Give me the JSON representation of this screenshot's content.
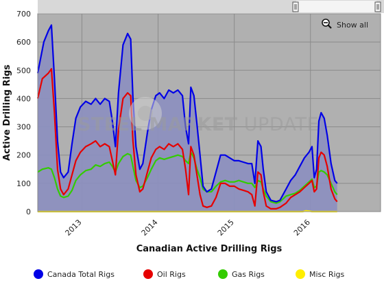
{
  "toolbar": {
    "show_all_label": "Show all"
  },
  "watermark": {
    "bold": "STEEL MARKET",
    "light": " UPDATE"
  },
  "colors": {
    "plot_bg": "#b0b0b0",
    "canada": "#0000e6",
    "canada_fill": "#8c8fbf",
    "oil": "#e60000",
    "gas": "#33cc00",
    "misc": "#ffee00",
    "scroll_track": "#e8e8e8"
  },
  "chart_data": {
    "type": "area",
    "title": "",
    "xlabel": "Canadian Active Drilling Rigs",
    "ylabel": "Active Drilling Rigs",
    "x_range": [
      2012.42,
      2016.92
    ],
    "ylim": [
      0,
      700
    ],
    "y_ticks": [
      0,
      100,
      200,
      300,
      400,
      500,
      600,
      700
    ],
    "x_ticks": [
      {
        "label": "2013",
        "value": 2013.0
      },
      {
        "label": "2014",
        "value": 2014.0
      },
      {
        "label": "2015",
        "value": 2015.0
      },
      {
        "label": "2016",
        "value": 2016.0
      }
    ],
    "grid": true,
    "legend_position": "bottom",
    "series": [
      {
        "name": "Canada Total Rigs",
        "color_key": "canada",
        "fill_key": "canada_fill",
        "points": [
          [
            2012.42,
            490
          ],
          [
            2012.5,
            600
          ],
          [
            2012.56,
            640
          ],
          [
            2012.6,
            660
          ],
          [
            2012.64,
            470
          ],
          [
            2012.68,
            250
          ],
          [
            2012.72,
            140
          ],
          [
            2012.76,
            120
          ],
          [
            2012.82,
            140
          ],
          [
            2012.87,
            240
          ],
          [
            2012.92,
            330
          ],
          [
            2012.98,
            370
          ],
          [
            2013.05,
            390
          ],
          [
            2013.12,
            380
          ],
          [
            2013.18,
            400
          ],
          [
            2013.24,
            380
          ],
          [
            2013.3,
            400
          ],
          [
            2013.36,
            390
          ],
          [
            2013.4,
            320
          ],
          [
            2013.44,
            230
          ],
          [
            2013.48,
            420
          ],
          [
            2013.54,
            590
          ],
          [
            2013.6,
            630
          ],
          [
            2013.64,
            610
          ],
          [
            2013.67,
            400
          ],
          [
            2013.71,
            230
          ],
          [
            2013.76,
            150
          ],
          [
            2013.8,
            170
          ],
          [
            2013.86,
            280
          ],
          [
            2013.91,
            360
          ],
          [
            2013.97,
            410
          ],
          [
            2014.02,
            420
          ],
          [
            2014.08,
            400
          ],
          [
            2014.14,
            430
          ],
          [
            2014.2,
            420
          ],
          [
            2014.26,
            430
          ],
          [
            2014.32,
            410
          ],
          [
            2014.36,
            300
          ],
          [
            2014.4,
            240
          ],
          [
            2014.43,
            440
          ],
          [
            2014.47,
            410
          ],
          [
            2014.51,
            310
          ],
          [
            2014.55,
            200
          ],
          [
            2014.59,
            90
          ],
          [
            2014.64,
            70
          ],
          [
            2014.7,
            80
          ],
          [
            2014.76,
            140
          ],
          [
            2014.82,
            200
          ],
          [
            2014.88,
            200
          ],
          [
            2014.94,
            190
          ],
          [
            2015.0,
            180
          ],
          [
            2015.06,
            180
          ],
          [
            2015.12,
            175
          ],
          [
            2015.18,
            170
          ],
          [
            2015.23,
            170
          ],
          [
            2015.27,
            100
          ],
          [
            2015.31,
            250
          ],
          [
            2015.35,
            230
          ],
          [
            2015.38,
            150
          ],
          [
            2015.42,
            70
          ],
          [
            2015.48,
            40
          ],
          [
            2015.55,
            35
          ],
          [
            2015.6,
            40
          ],
          [
            2015.68,
            80
          ],
          [
            2015.74,
            110
          ],
          [
            2015.8,
            130
          ],
          [
            2015.86,
            160
          ],
          [
            2015.92,
            190
          ],
          [
            2015.98,
            210
          ],
          [
            2016.02,
            230
          ],
          [
            2016.05,
            120
          ],
          [
            2016.08,
            150
          ],
          [
            2016.11,
            320
          ],
          [
            2016.14,
            350
          ],
          [
            2016.18,
            330
          ],
          [
            2016.22,
            270
          ],
          [
            2016.27,
            170
          ],
          [
            2016.32,
            110
          ],
          [
            2016.35,
            100
          ]
        ]
      },
      {
        "name": "Oil Rigs",
        "color_key": "oil",
        "points": [
          [
            2012.42,
            400
          ],
          [
            2012.48,
            470
          ],
          [
            2012.56,
            490
          ],
          [
            2012.6,
            505
          ],
          [
            2012.64,
            350
          ],
          [
            2012.68,
            150
          ],
          [
            2012.72,
            80
          ],
          [
            2012.76,
            60
          ],
          [
            2012.82,
            80
          ],
          [
            2012.87,
            130
          ],
          [
            2012.92,
            180
          ],
          [
            2012.98,
            210
          ],
          [
            2013.05,
            230
          ],
          [
            2013.12,
            240
          ],
          [
            2013.18,
            250
          ],
          [
            2013.24,
            230
          ],
          [
            2013.3,
            240
          ],
          [
            2013.36,
            230
          ],
          [
            2013.4,
            180
          ],
          [
            2013.44,
            130
          ],
          [
            2013.48,
            290
          ],
          [
            2013.54,
            400
          ],
          [
            2013.6,
            420
          ],
          [
            2013.64,
            410
          ],
          [
            2013.67,
            250
          ],
          [
            2013.71,
            130
          ],
          [
            2013.76,
            70
          ],
          [
            2013.8,
            80
          ],
          [
            2013.86,
            140
          ],
          [
            2013.91,
            190
          ],
          [
            2013.97,
            220
          ],
          [
            2014.02,
            230
          ],
          [
            2014.08,
            220
          ],
          [
            2014.14,
            240
          ],
          [
            2014.2,
            230
          ],
          [
            2014.26,
            240
          ],
          [
            2014.32,
            220
          ],
          [
            2014.36,
            150
          ],
          [
            2014.4,
            60
          ],
          [
            2014.43,
            230
          ],
          [
            2014.47,
            200
          ],
          [
            2014.51,
            130
          ],
          [
            2014.55,
            60
          ],
          [
            2014.59,
            20
          ],
          [
            2014.64,
            15
          ],
          [
            2014.7,
            20
          ],
          [
            2014.76,
            50
          ],
          [
            2014.82,
            100
          ],
          [
            2014.88,
            100
          ],
          [
            2014.94,
            90
          ],
          [
            2015.0,
            90
          ],
          [
            2015.06,
            80
          ],
          [
            2015.12,
            75
          ],
          [
            2015.18,
            70
          ],
          [
            2015.23,
            60
          ],
          [
            2015.27,
            20
          ],
          [
            2015.31,
            140
          ],
          [
            2015.35,
            130
          ],
          [
            2015.38,
            70
          ],
          [
            2015.42,
            20
          ],
          [
            2015.48,
            10
          ],
          [
            2015.55,
            10
          ],
          [
            2015.6,
            15
          ],
          [
            2015.68,
            30
          ],
          [
            2015.74,
            50
          ],
          [
            2015.8,
            60
          ],
          [
            2015.86,
            70
          ],
          [
            2015.92,
            85
          ],
          [
            2015.98,
            100
          ],
          [
            2016.02,
            110
          ],
          [
            2016.05,
            70
          ],
          [
            2016.08,
            80
          ],
          [
            2016.11,
            190
          ],
          [
            2016.14,
            210
          ],
          [
            2016.18,
            200
          ],
          [
            2016.22,
            160
          ],
          [
            2016.27,
            80
          ],
          [
            2016.32,
            45
          ],
          [
            2016.35,
            35
          ]
        ]
      },
      {
        "name": "Gas Rigs",
        "color_key": "gas",
        "points": [
          [
            2012.42,
            140
          ],
          [
            2012.48,
            150
          ],
          [
            2012.56,
            155
          ],
          [
            2012.6,
            150
          ],
          [
            2012.64,
            120
          ],
          [
            2012.68,
            80
          ],
          [
            2012.72,
            55
          ],
          [
            2012.76,
            50
          ],
          [
            2012.82,
            55
          ],
          [
            2012.87,
            75
          ],
          [
            2012.92,
            110
          ],
          [
            2012.98,
            130
          ],
          [
            2013.05,
            145
          ],
          [
            2013.12,
            150
          ],
          [
            2013.18,
            165
          ],
          [
            2013.24,
            160
          ],
          [
            2013.3,
            170
          ],
          [
            2013.36,
            175
          ],
          [
            2013.4,
            160
          ],
          [
            2013.44,
            140
          ],
          [
            2013.48,
            170
          ],
          [
            2013.54,
            195
          ],
          [
            2013.6,
            205
          ],
          [
            2013.64,
            200
          ],
          [
            2013.67,
            160
          ],
          [
            2013.71,
            110
          ],
          [
            2013.76,
            85
          ],
          [
            2013.8,
            90
          ],
          [
            2013.86,
            120
          ],
          [
            2013.91,
            150
          ],
          [
            2013.97,
            180
          ],
          [
            2014.02,
            190
          ],
          [
            2014.08,
            185
          ],
          [
            2014.14,
            190
          ],
          [
            2014.2,
            195
          ],
          [
            2014.26,
            200
          ],
          [
            2014.32,
            195
          ],
          [
            2014.36,
            180
          ],
          [
            2014.4,
            170
          ],
          [
            2014.43,
            210
          ],
          [
            2014.47,
            190
          ],
          [
            2014.51,
            150
          ],
          [
            2014.55,
            120
          ],
          [
            2014.59,
            80
          ],
          [
            2014.64,
            70
          ],
          [
            2014.7,
            70
          ],
          [
            2014.76,
            90
          ],
          [
            2014.82,
            105
          ],
          [
            2014.88,
            110
          ],
          [
            2014.94,
            105
          ],
          [
            2015.0,
            105
          ],
          [
            2015.06,
            110
          ],
          [
            2015.12,
            105
          ],
          [
            2015.18,
            100
          ],
          [
            2015.23,
            100
          ],
          [
            2015.27,
            85
          ],
          [
            2015.31,
            110
          ],
          [
            2015.35,
            105
          ],
          [
            2015.38,
            80
          ],
          [
            2015.42,
            55
          ],
          [
            2015.48,
            35
          ],
          [
            2015.55,
            30
          ],
          [
            2015.6,
            35
          ],
          [
            2015.68,
            55
          ],
          [
            2015.74,
            60
          ],
          [
            2015.8,
            65
          ],
          [
            2015.86,
            75
          ],
          [
            2015.92,
            90
          ],
          [
            2015.98,
            105
          ],
          [
            2016.02,
            115
          ],
          [
            2016.05,
            85
          ],
          [
            2016.08,
            90
          ],
          [
            2016.11,
            140
          ],
          [
            2016.14,
            145
          ],
          [
            2016.18,
            140
          ],
          [
            2016.22,
            130
          ],
          [
            2016.27,
            100
          ],
          [
            2016.32,
            70
          ],
          [
            2016.35,
            60
          ]
        ]
      },
      {
        "name": "Misc Rigs",
        "color_key": "misc",
        "points": [
          [
            2012.42,
            0
          ],
          [
            2015.9,
            0
          ],
          [
            2015.94,
            3
          ],
          [
            2015.98,
            2
          ],
          [
            2016.02,
            0
          ],
          [
            2016.35,
            0
          ]
        ]
      }
    ]
  }
}
